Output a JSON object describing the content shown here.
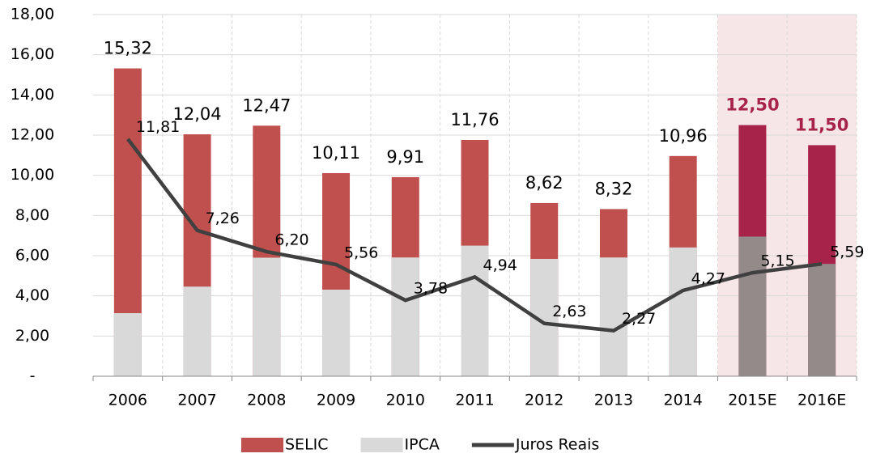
{
  "chart_data": {
    "type": "bar-line",
    "categories": [
      "2006",
      "2007",
      "2008",
      "2009",
      "2010",
      "2011",
      "2012",
      "2013",
      "2014",
      "2015E",
      "2016E"
    ],
    "series": [
      {
        "name": "SELIC",
        "type": "bar",
        "color": "#c0504d",
        "forecast_color": "#a8234a",
        "values": [
          15.32,
          12.04,
          12.47,
          10.11,
          9.91,
          11.76,
          8.62,
          8.32,
          10.96,
          12.5,
          11.5
        ],
        "value_labels": [
          "15,32",
          "12,04",
          "12,47",
          "10,11",
          "9,91",
          "11,76",
          "8,62",
          "8,32",
          "10,96",
          "12,50",
          "11,50"
        ]
      },
      {
        "name": "IPCA",
        "type": "bar",
        "color": "#d9d9d9",
        "forecast_color": "#948a8a",
        "values": [
          3.14,
          4.46,
          5.9,
          4.31,
          5.91,
          6.5,
          5.84,
          5.91,
          6.41,
          6.95,
          5.59
        ]
      },
      {
        "name": "Juros Reais",
        "type": "line",
        "color": "#404040",
        "values": [
          11.81,
          7.26,
          6.2,
          5.56,
          3.78,
          4.94,
          2.63,
          2.27,
          4.27,
          5.15,
          5.59
        ],
        "value_labels": [
          "11,81",
          "7,26",
          "6,20",
          "5,56",
          "3,78",
          "4,94",
          "2,63",
          "2,27",
          "4,27",
          "5,15",
          "5,59"
        ]
      }
    ],
    "forecast_shade": "#f7e6e8",
    "ylim": [
      0,
      18
    ],
    "yticks": [
      {
        "value": 0,
        "label": "-"
      },
      {
        "value": 2,
        "label": "2,00"
      },
      {
        "value": 4,
        "label": "4,00"
      },
      {
        "value": 6,
        "label": "6,00"
      },
      {
        "value": 8,
        "label": "8,00"
      },
      {
        "value": 10,
        "label": "10,00"
      },
      {
        "value": 12,
        "label": "12,00"
      },
      {
        "value": 14,
        "label": "14,00"
      },
      {
        "value": 16,
        "label": "16,00"
      },
      {
        "value": 18,
        "label": "18,00"
      }
    ],
    "grid": true
  }
}
